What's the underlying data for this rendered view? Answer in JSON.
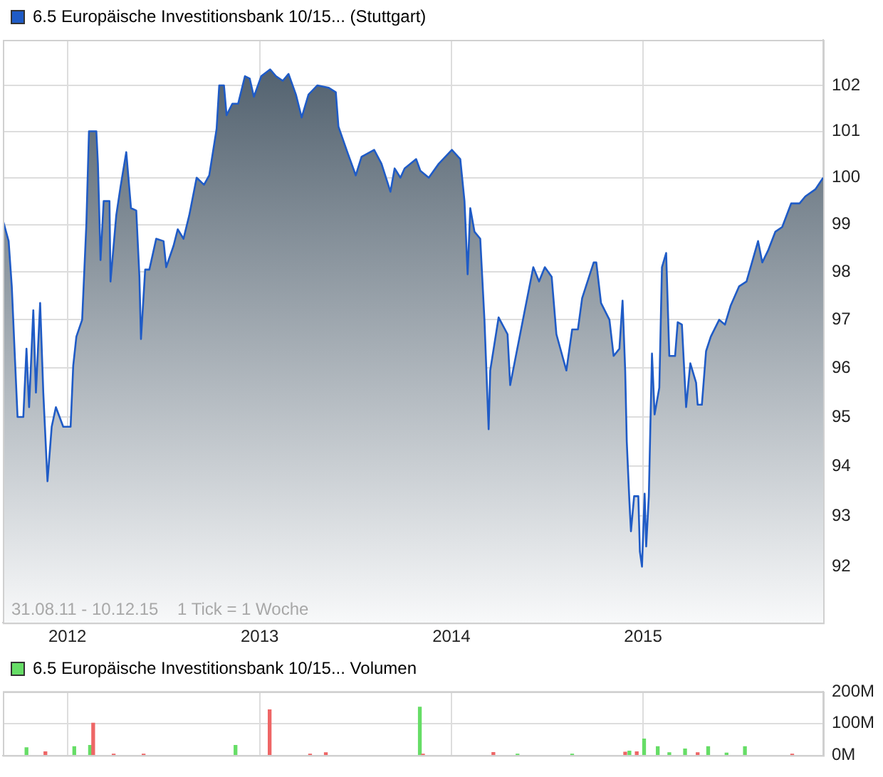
{
  "chart_data": [
    {
      "type": "area",
      "log": true,
      "grid": true,
      "legend": "top left",
      "marker": "none",
      "xlim": [
        "2011-08-31",
        "2015-12-10"
      ],
      "xticks": [
        {
          "value": "2012-01-01",
          "label": "2012"
        },
        {
          "value": "2013-01-01",
          "label": "2013"
        },
        {
          "value": "2014-01-01",
          "label": "2014"
        },
        {
          "value": "2015-01-01",
          "label": "2015"
        }
      ],
      "ylim": [
        90.9,
        103
      ],
      "yticks": [
        92,
        93,
        94,
        95,
        96,
        97,
        98,
        99,
        100,
        101,
        102
      ],
      "annotations": [
        "31.08.11 - 10.12.15    1 Tick = 1 Woche"
      ],
      "series": [
        {
          "name": "6.5 Europäische Investitionsbank 10/15... (Stuttgart)",
          "color": "#1f5bc6",
          "x": [
            "2011-08-31",
            "2011-09-11",
            "2011-09-17",
            "2011-09-23",
            "2011-09-28",
            "2011-10-09",
            "2011-10-15",
            "2011-10-20",
            "2011-10-28",
            "2011-11-02",
            "2011-11-10",
            "2011-11-16",
            "2011-11-24",
            "2011-12-02",
            "2011-12-10",
            "2011-12-24",
            "2012-01-07",
            "2012-01-12",
            "2012-01-18",
            "2012-01-29",
            "2012-02-06",
            "2012-02-11",
            "2012-02-25",
            "2012-02-28",
            "2012-03-04",
            "2012-03-10",
            "2012-03-21",
            "2012-03-23",
            "2012-04-03",
            "2012-04-11",
            "2012-04-22",
            "2012-05-01",
            "2012-05-11",
            "2012-05-17",
            "2012-05-20",
            "2012-05-28",
            "2012-06-05",
            "2012-06-18",
            "2012-07-02",
            "2012-07-07",
            "2012-07-21",
            "2012-07-29",
            "2012-08-09",
            "2012-08-20",
            "2012-09-03",
            "2012-09-17",
            "2012-09-27",
            "2012-10-11",
            "2012-10-16",
            "2012-10-25",
            "2012-10-30",
            "2012-11-10",
            "2012-11-21",
            "2012-12-04",
            "2012-12-13",
            "2012-12-21",
            "2013-01-04",
            "2013-01-21",
            "2013-02-01",
            "2013-02-14",
            "2013-02-25",
            "2013-03-11",
            "2013-03-22",
            "2013-04-04",
            "2013-04-21",
            "2013-05-12",
            "2013-05-26",
            "2013-05-31",
            "2013-06-17",
            "2013-07-03",
            "2013-07-14",
            "2013-08-07",
            "2013-08-21",
            "2013-09-07",
            "2013-09-15",
            "2013-09-26",
            "2013-10-04",
            "2013-10-26",
            "2013-11-03",
            "2013-11-19",
            "2013-12-08",
            "2014-01-02",
            "2014-01-18",
            "2014-01-26",
            "2014-02-01",
            "2014-02-06",
            "2014-02-14",
            "2014-02-25",
            "2014-03-05",
            "2014-03-13",
            "2014-03-16",
            "2014-04-01",
            "2014-04-18",
            "2014-04-23",
            "2014-05-20",
            "2014-06-06",
            "2014-06-17",
            "2014-06-28",
            "2014-07-11",
            "2014-07-20",
            "2014-08-08",
            "2014-08-19",
            "2014-08-30",
            "2014-09-07",
            "2014-09-29",
            "2014-10-04",
            "2014-10-13",
            "2014-10-29",
            "2014-11-06",
            "2014-11-17",
            "2014-11-23",
            "2014-11-28",
            "2014-12-01",
            "2014-12-06",
            "2014-12-09",
            "2014-12-15",
            "2014-12-23",
            "2014-12-26",
            "2014-12-30",
            "2015-01-04",
            "2015-01-07",
            "2015-01-12",
            "2015-01-18",
            "2015-01-23",
            "2015-02-01",
            "2015-02-06",
            "2015-02-14",
            "2015-02-20",
            "2015-03-03",
            "2015-03-08",
            "2015-03-16",
            "2015-03-24",
            "2015-04-01",
            "2015-04-12",
            "2015-04-15",
            "2015-04-23",
            "2015-05-01",
            "2015-05-10",
            "2015-05-26",
            "2015-06-06",
            "2015-06-17",
            "2015-07-03",
            "2015-07-17",
            "2015-07-30",
            "2015-08-08",
            "2015-08-16",
            "2015-08-27",
            "2015-09-10",
            "2015-09-23",
            "2015-10-10",
            "2015-10-26",
            "2015-11-06",
            "2015-11-25",
            "2015-12-10"
          ],
          "values": [
            99.1,
            98.65,
            97.7,
            96.2,
            95.0,
            95.0,
            96.4,
            95.2,
            97.2,
            95.5,
            97.35,
            95.5,
            93.7,
            94.8,
            95.2,
            94.8,
            94.8,
            96.05,
            96.65,
            97.0,
            99.0,
            101.0,
            101.0,
            100.3,
            98.25,
            99.5,
            99.5,
            97.8,
            99.2,
            99.8,
            100.55,
            99.35,
            99.3,
            97.9,
            96.6,
            98.05,
            98.05,
            98.7,
            98.65,
            98.1,
            98.55,
            98.9,
            98.7,
            99.2,
            100.0,
            99.85,
            100.05,
            101.05,
            102.0,
            102.0,
            101.35,
            101.6,
            101.6,
            102.2,
            102.15,
            101.75,
            102.2,
            102.35,
            102.2,
            102.1,
            102.25,
            101.8,
            101.3,
            101.8,
            102.0,
            101.95,
            101.85,
            101.1,
            100.55,
            100.05,
            100.45,
            100.6,
            100.3,
            99.7,
            100.2,
            100.0,
            100.2,
            100.4,
            100.15,
            100.0,
            100.3,
            100.6,
            100.4,
            99.5,
            97.95,
            99.35,
            98.85,
            98.7,
            97.0,
            94.75,
            95.95,
            97.05,
            96.7,
            95.65,
            97.15,
            98.1,
            97.8,
            98.1,
            97.9,
            96.7,
            95.95,
            96.8,
            96.8,
            97.45,
            98.2,
            98.2,
            97.35,
            97.0,
            96.25,
            96.4,
            97.4,
            95.95,
            94.5,
            93.3,
            92.7,
            93.4,
            93.4,
            92.3,
            92.0,
            93.45,
            92.4,
            93.4,
            96.3,
            95.05,
            95.6,
            98.1,
            98.4,
            96.25,
            96.25,
            96.95,
            96.9,
            95.2,
            96.1,
            95.7,
            95.25,
            95.25,
            96.35,
            96.65,
            97.0,
            96.9,
            97.3,
            97.7,
            97.8,
            98.3,
            98.65,
            98.2,
            98.45,
            98.85,
            98.95,
            99.45,
            99.45,
            99.6,
            99.75,
            100.0
          ]
        }
      ]
    },
    {
      "type": "bar",
      "grid": true,
      "legend": "top left",
      "tick_labels": "y",
      "xlim": [
        "2011-08-31",
        "2015-12-10"
      ],
      "xticks": [
        {
          "value": "2012-01-01",
          "label": null
        },
        {
          "value": "2013-01-01",
          "label": null
        },
        {
          "value": "2014-01-01",
          "label": null
        },
        {
          "value": "2015-01-01",
          "label": null
        }
      ],
      "ylim": [
        0,
        200
      ],
      "yticks": [
        {
          "value": 0,
          "label": "0M"
        },
        {
          "value": 100,
          "label": "100M"
        },
        {
          "value": 200,
          "label": "200M"
        }
      ],
      "series": [
        {
          "name": "6.5 Europäische Investitionsbank 10/15... Volumen",
          "color": "#66dd66",
          "x": [
            "2011-10-15",
            "2011-11-20",
            "2012-01-14",
            "2012-02-13",
            "2012-02-19",
            "2012-03-29",
            "2012-05-25",
            "2012-11-16",
            "2013-01-20",
            "2013-04-07",
            "2013-05-07",
            "2013-11-02",
            "2013-11-08",
            "2014-03-22",
            "2014-05-07",
            "2014-08-19",
            "2014-11-28",
            "2014-12-06",
            "2014-12-20",
            "2015-01-03",
            "2015-01-29",
            "2015-02-20",
            "2015-03-22",
            "2015-04-15",
            "2015-05-05",
            "2015-06-09",
            "2015-07-14",
            "2015-10-12"
          ],
          "values": [
            24,
            11,
            27,
            31,
            101,
            4,
            4,
            31,
            143,
            4,
            8,
            151,
            4,
            9,
            4,
            4,
            10,
            13,
            11,
            51,
            27,
            8,
            20,
            8,
            27,
            7,
            27,
            4
          ],
          "colors": [
            "#66dd66",
            "#ee6666",
            "#66dd66",
            "#66dd66",
            "#ee6666",
            "#ee6666",
            "#ee6666",
            "#66dd66",
            "#ee6666",
            "#ee6666",
            "#ee6666",
            "#66dd66",
            "#ee6666",
            "#ee6666",
            "#66dd66",
            "#66dd66",
            "#ee6666",
            "#66dd66",
            "#ee6666",
            "#66dd66",
            "#66dd66",
            "#66dd66",
            "#66dd66",
            "#ee6666",
            "#66dd66",
            "#66dd66",
            "#66dd66",
            "#ee6666"
          ]
        }
      ]
    }
  ]
}
